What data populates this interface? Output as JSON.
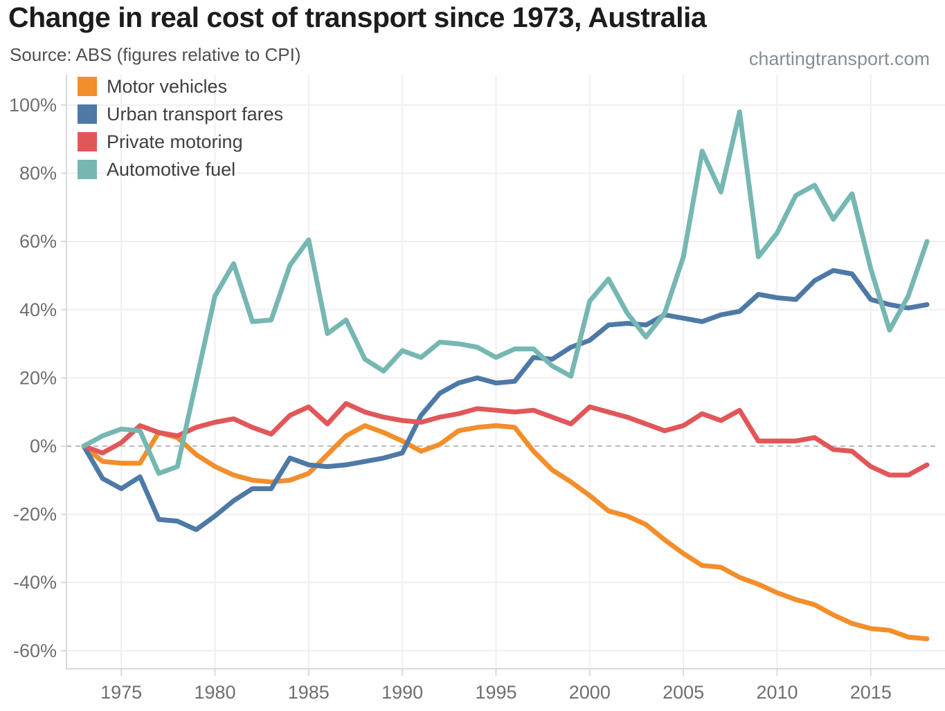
{
  "watermark": {
    "text": "chartingtransport.com"
  },
  "legend": {
    "position": "top-left"
  },
  "axes": {
    "y_tick_suffix": "%",
    "grid": true,
    "zero_line_style": "dashed"
  },
  "chart_data": {
    "type": "line",
    "title": "Change in real cost of transport since 1973, Australia",
    "subtitle": "Source: ABS (figures relative to CPI)",
    "xlabel": "",
    "ylabel": "",
    "xlim": [
      1972,
      2019
    ],
    "ylim": [
      -65,
      107
    ],
    "xticks": [
      1975,
      1980,
      1985,
      1990,
      1995,
      2000,
      2005,
      2010,
      2015
    ],
    "yticks": [
      100,
      80,
      60,
      40,
      20,
      0,
      -20,
      -40,
      -60
    ],
    "x": [
      1973,
      1974,
      1975,
      1976,
      1977,
      1978,
      1979,
      1980,
      1981,
      1982,
      1983,
      1984,
      1985,
      1986,
      1987,
      1988,
      1989,
      1990,
      1991,
      1992,
      1993,
      1994,
      1995,
      1996,
      1997,
      1998,
      1999,
      2000,
      2001,
      2002,
      2003,
      2004,
      2005,
      2006,
      2007,
      2008,
      2009,
      2010,
      2011,
      2012,
      2013,
      2014,
      2015,
      2016,
      2017,
      2018
    ],
    "series": [
      {
        "name": "Motor vehicles",
        "color": "#f28e2b",
        "values": [
          0,
          -4.5,
          -5,
          -5,
          4,
          2.5,
          -2.5,
          -6,
          -8.5,
          -10,
          -10.5,
          -10,
          -8,
          -2.5,
          3,
          6,
          4,
          1.5,
          -1.5,
          0.5,
          4.5,
          5.5,
          6,
          5.5,
          -1.5,
          -7,
          -10.5,
          -14.5,
          -19,
          -20.5,
          -23,
          -27.5,
          -31.5,
          -35,
          -35.5,
          -38.5,
          -40.5,
          -43,
          -45,
          -46.5,
          -49.5,
          -52,
          -53.5,
          -54,
          -56,
          -56.5
        ]
      },
      {
        "name": "Urban transport fares",
        "color": "#4e79a7",
        "values": [
          0,
          -9.5,
          -12.5,
          -9,
          -21.5,
          -22,
          -24.5,
          -20.5,
          -16,
          -12.5,
          -12.5,
          -3.5,
          -5.5,
          -6,
          -5.5,
          -4.5,
          -3.5,
          -2,
          9,
          15.5,
          18.5,
          20,
          18.5,
          19,
          26,
          25.5,
          29,
          31,
          35.5,
          36,
          35.5,
          38.5,
          37.5,
          36.5,
          38.5,
          39.5,
          44.5,
          43.5,
          43,
          48.5,
          51.5,
          50.5,
          43,
          41.5,
          40.5,
          41.5
        ]
      },
      {
        "name": "Private motoring",
        "color": "#e15759",
        "values": [
          0,
          -2,
          1,
          6,
          4,
          3,
          5.5,
          7,
          8,
          5.5,
          3.5,
          9,
          11.5,
          6.5,
          12.5,
          10,
          8.5,
          7.5,
          7,
          8.5,
          9.5,
          11,
          10.5,
          10,
          10.5,
          8.5,
          6.5,
          11.5,
          10,
          8.5,
          6.5,
          4.5,
          6,
          9.5,
          7.5,
          10.5,
          1.5,
          1.5,
          1.5,
          2.5,
          -1,
          -1.5,
          -6,
          -8.5,
          -8.5,
          -5.5
        ]
      },
      {
        "name": "Automotive fuel",
        "color": "#76b7b2",
        "values": [
          0,
          3,
          5,
          4.5,
          -8,
          -6,
          19,
          44,
          53.5,
          36.5,
          37,
          53,
          60.5,
          33,
          37,
          25.5,
          22,
          28,
          26,
          30.5,
          30,
          29,
          26,
          28.5,
          28.5,
          23.5,
          20.5,
          42.5,
          49,
          39,
          32,
          39,
          55.5,
          86.5,
          74.5,
          98,
          55.5,
          62.5,
          73.5,
          76.5,
          66.5,
          74,
          52,
          34,
          44,
          60
        ]
      }
    ],
    "legend_position": "top-left",
    "grid": true
  }
}
